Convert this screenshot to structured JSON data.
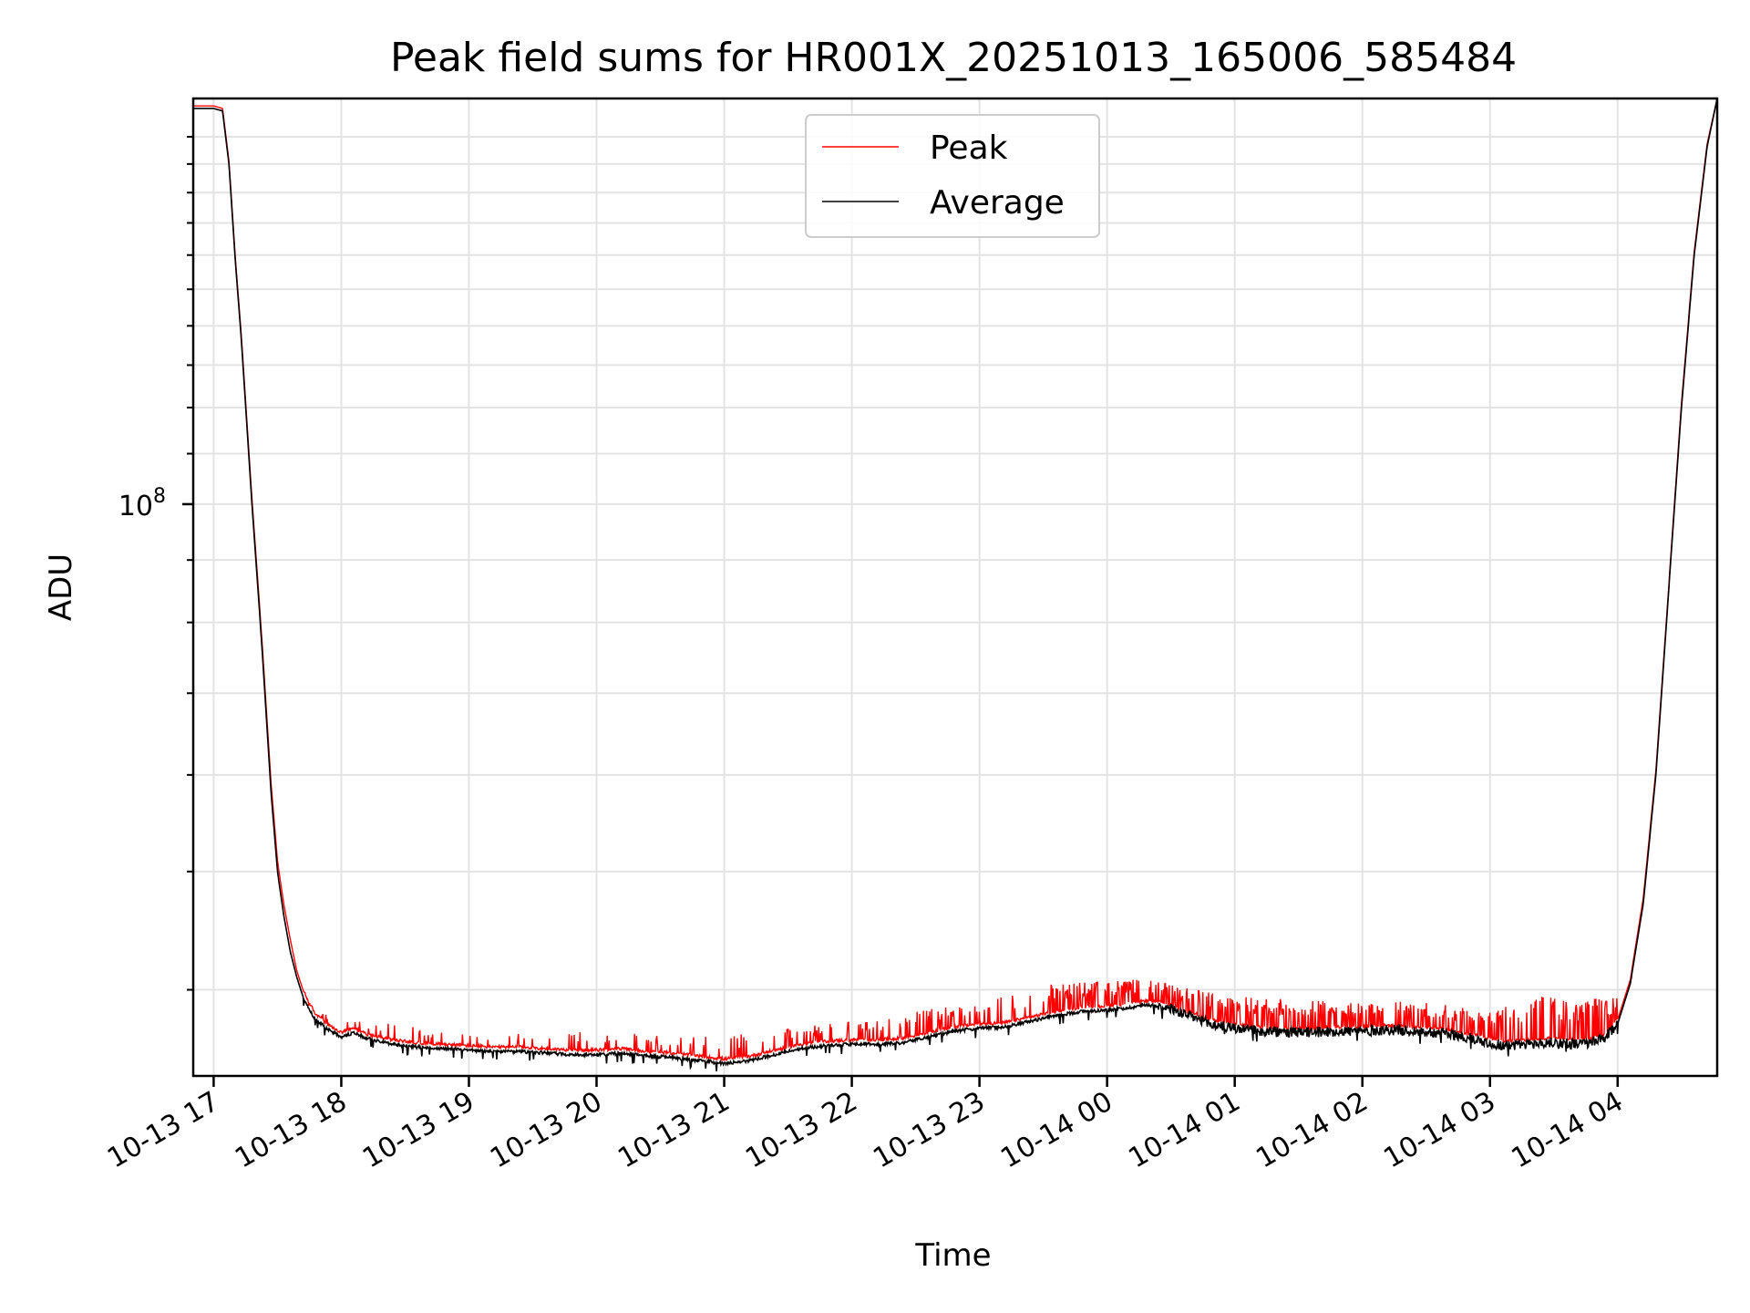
{
  "chart_data": {
    "type": "line",
    "title": "Peak field sums for HR001X_20251013_165006_585484",
    "xlabel": "Time",
    "ylabel": "ADU",
    "yscale": "log",
    "y_major_tick": {
      "value": 100000000,
      "base": "10",
      "exp": "8"
    },
    "ylim": [
      34000000,
      215000000
    ],
    "x_unit": "hours since 2025-10-13 00:00",
    "xlim": [
      16.84,
      28.78
    ],
    "x_ticks": [
      {
        "x": 17,
        "label": "10-13 17"
      },
      {
        "x": 18,
        "label": "10-13 18"
      },
      {
        "x": 19,
        "label": "10-13 19"
      },
      {
        "x": 20,
        "label": "10-13 20"
      },
      {
        "x": 21,
        "label": "10-13 21"
      },
      {
        "x": 22,
        "label": "10-13 22"
      },
      {
        "x": 23,
        "label": "10-13 23"
      },
      {
        "x": 24,
        "label": "10-14 00"
      },
      {
        "x": 25,
        "label": "10-14 01"
      },
      {
        "x": 26,
        "label": "10-14 02"
      },
      {
        "x": 27,
        "label": "10-14 03"
      },
      {
        "x": 28,
        "label": "10-14 04"
      }
    ],
    "grid": true,
    "legend": {
      "position": "upper center",
      "entries": [
        "Peak",
        "Average"
      ]
    },
    "series": [
      {
        "name": "Average",
        "color": "#000000",
        "x": [
          16.84,
          17.0,
          17.07,
          17.12,
          17.17,
          17.22,
          17.3,
          17.38,
          17.45,
          17.5,
          17.55,
          17.6,
          17.65,
          17.7,
          17.75,
          17.8,
          17.9,
          18.0,
          18.1,
          18.2,
          18.4,
          18.6,
          18.8,
          19.0,
          19.2,
          19.4,
          19.6,
          19.8,
          20.0,
          20.2,
          20.4,
          20.6,
          20.8,
          21.0,
          21.2,
          21.4,
          21.6,
          21.8,
          22.0,
          22.2,
          22.4,
          22.6,
          22.8,
          23.0,
          23.2,
          23.4,
          23.6,
          23.8,
          24.0,
          24.2,
          24.3,
          24.4,
          24.5,
          24.6,
          24.7,
          24.8,
          25.0,
          25.2,
          25.4,
          25.6,
          25.8,
          26.0,
          26.2,
          26.4,
          26.6,
          26.8,
          27.0,
          27.1,
          27.3,
          27.5,
          27.7,
          27.8,
          27.9,
          28.0,
          28.1,
          28.2,
          28.3,
          28.4,
          28.5,
          28.6,
          28.7,
          28.78
        ],
        "values": [
          211000000,
          211000000,
          210000000,
          190000000,
          158000000,
          135000000,
          100000000,
          76000000,
          58000000,
          50000000,
          46000000,
          43000000,
          41000000,
          39500000,
          38500000,
          37800000,
          37100000,
          36600000,
          36900000,
          36500000,
          36100000,
          35900000,
          35800000,
          35700000,
          35600000,
          35600000,
          35500000,
          35400000,
          35400000,
          35500000,
          35300000,
          35200000,
          35000000,
          34800000,
          35000000,
          35400000,
          35800000,
          36000000,
          36100000,
          36100000,
          36200000,
          36600000,
          37000000,
          37200000,
          37300000,
          37700000,
          38100000,
          38400000,
          38500000,
          38700000,
          38900000,
          38800000,
          38600000,
          38200000,
          37900000,
          37500000,
          37200000,
          37000000,
          36900000,
          36900000,
          37000000,
          37000000,
          37100000,
          37000000,
          36900000,
          36600000,
          36200000,
          36000000,
          36100000,
          36200000,
          36100000,
          36200000,
          36500000,
          37500000,
          40500000,
          47000000,
          60000000,
          85000000,
          120000000,
          160000000,
          196000000,
          215000000
        ]
      },
      {
        "name": "Peak",
        "color": "#ff0000",
        "x": [
          16.84,
          17.0,
          17.07,
          17.12,
          17.17,
          17.22,
          17.3,
          17.38,
          17.45,
          17.5,
          17.55,
          17.6,
          17.65,
          17.7,
          17.75,
          17.8,
          17.9,
          18.0,
          18.1,
          18.2,
          18.4,
          18.6,
          18.8,
          19.0,
          19.2,
          19.4,
          19.6,
          19.8,
          20.0,
          20.2,
          20.4,
          20.6,
          20.8,
          21.0,
          21.2,
          21.4,
          21.6,
          21.8,
          22.0,
          22.2,
          22.4,
          22.6,
          22.8,
          23.0,
          23.2,
          23.4,
          23.6,
          23.8,
          24.0,
          24.2,
          24.3,
          24.4,
          24.5,
          24.6,
          24.7,
          24.8,
          25.0,
          25.2,
          25.4,
          25.6,
          25.8,
          26.0,
          26.2,
          26.4,
          26.6,
          26.8,
          27.0,
          27.1,
          27.3,
          27.5,
          27.7,
          27.8,
          27.9,
          28.0,
          28.1,
          28.2,
          28.3,
          28.4,
          28.5,
          28.6,
          28.7,
          28.78
        ],
        "values": [
          212000000,
          212000000,
          211000000,
          191000000,
          159000000,
          136000000,
          101000000,
          77000000,
          59000000,
          51000000,
          47000000,
          44000000,
          41500000,
          40000000,
          39000000,
          38200000,
          37400000,
          36900000,
          37200000,
          36800000,
          36400000,
          36200000,
          36100000,
          36000000,
          35900000,
          35900000,
          35800000,
          35700000,
          35700000,
          35800000,
          35600000,
          35500000,
          35300000,
          35100000,
          35300000,
          35700000,
          36100000,
          36300000,
          36400000,
          36400000,
          36500000,
          36900000,
          37300000,
          37500000,
          37600000,
          38000000,
          38400000,
          38700000,
          38800000,
          39000000,
          39200000,
          39100000,
          38900000,
          38500000,
          38200000,
          37800000,
          37500000,
          37300000,
          37200000,
          37200000,
          37300000,
          37300000,
          37400000,
          37300000,
          37200000,
          36900000,
          36500000,
          36300000,
          36400000,
          36500000,
          36400000,
          36500000,
          36800000,
          37800000,
          40800000,
          47500000,
          60500000,
          85500000,
          121000000,
          161000000,
          197000000,
          215000000
        ]
      }
    ],
    "peak_spike_envelope": {
      "x": [
        17.7,
        18.0,
        18.4,
        18.8,
        19.2,
        19.6,
        20.0,
        20.4,
        20.8,
        21.2,
        21.6,
        22.0,
        22.4,
        22.8,
        23.2,
        23.6,
        24.0,
        24.3,
        24.6,
        25.0,
        25.4,
        25.8,
        26.2,
        26.6,
        27.0,
        27.3,
        27.6,
        27.9
      ],
      "values": [
        38700000,
        37800000,
        37500000,
        37000000,
        36800000,
        36900000,
        37000000,
        36800000,
        36600000,
        36800000,
        37300000,
        37700000,
        38300000,
        38800000,
        39500000,
        40500000,
        40700000,
        40800000,
        40200000,
        39500000,
        39300000,
        39200000,
        39200000,
        39000000,
        38300000,
        39700000,
        39300000,
        39400000
      ]
    }
  }
}
